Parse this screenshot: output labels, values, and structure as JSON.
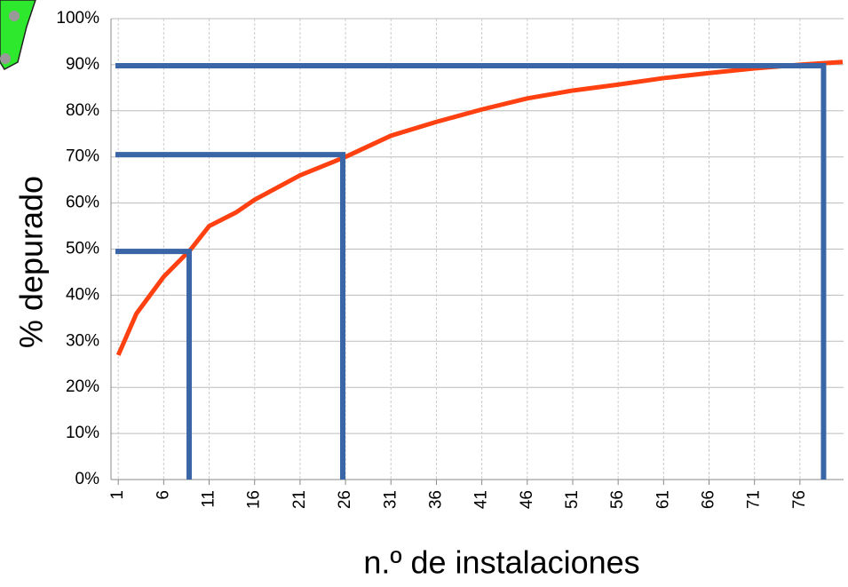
{
  "chart_data": {
    "type": "line",
    "x_label": "n.º de instalaciones",
    "y_label": "% depurado",
    "xlim": [
      0.2,
      80.8
    ],
    "xticks": [
      1,
      6,
      11,
      16,
      21,
      26,
      31,
      36,
      41,
      46,
      51,
      56,
      61,
      66,
      71,
      76
    ],
    "ylim": [
      0,
      100
    ],
    "yticks": [
      {
        "value": 0,
        "label": "0%"
      },
      {
        "value": 10,
        "label": "10%"
      },
      {
        "value": 20,
        "label": "20%"
      },
      {
        "value": 30,
        "label": "30%"
      },
      {
        "value": 40,
        "label": "40%"
      },
      {
        "value": 50,
        "label": "50%"
      },
      {
        "value": 60,
        "label": "60%"
      },
      {
        "value": 70,
        "label": "70%"
      },
      {
        "value": 80,
        "label": "80%"
      },
      {
        "value": 90,
        "label": "90%"
      },
      {
        "value": 100,
        "label": "100%"
      }
    ],
    "grid": true,
    "series": [
      {
        "color": "#ff4010",
        "x": [
          1,
          3,
          6,
          9,
          11,
          14,
          16,
          21,
          26,
          31,
          36,
          41,
          46,
          51,
          56,
          61,
          66,
          71,
          76,
          80.7
        ],
        "values": [
          27,
          36,
          44,
          50,
          55,
          58,
          60.7,
          66,
          70,
          74.6,
          77.6,
          80.3,
          82.7,
          84.4,
          85.7,
          87.1,
          88.2,
          89.2,
          90,
          90.6
        ]
      }
    ],
    "guides": {
      "color": "#3a66a8",
      "x": [
        8.8,
        25.7,
        78.6
      ],
      "values": [
        49.5,
        70.5,
        89.8
      ]
    }
  }
}
